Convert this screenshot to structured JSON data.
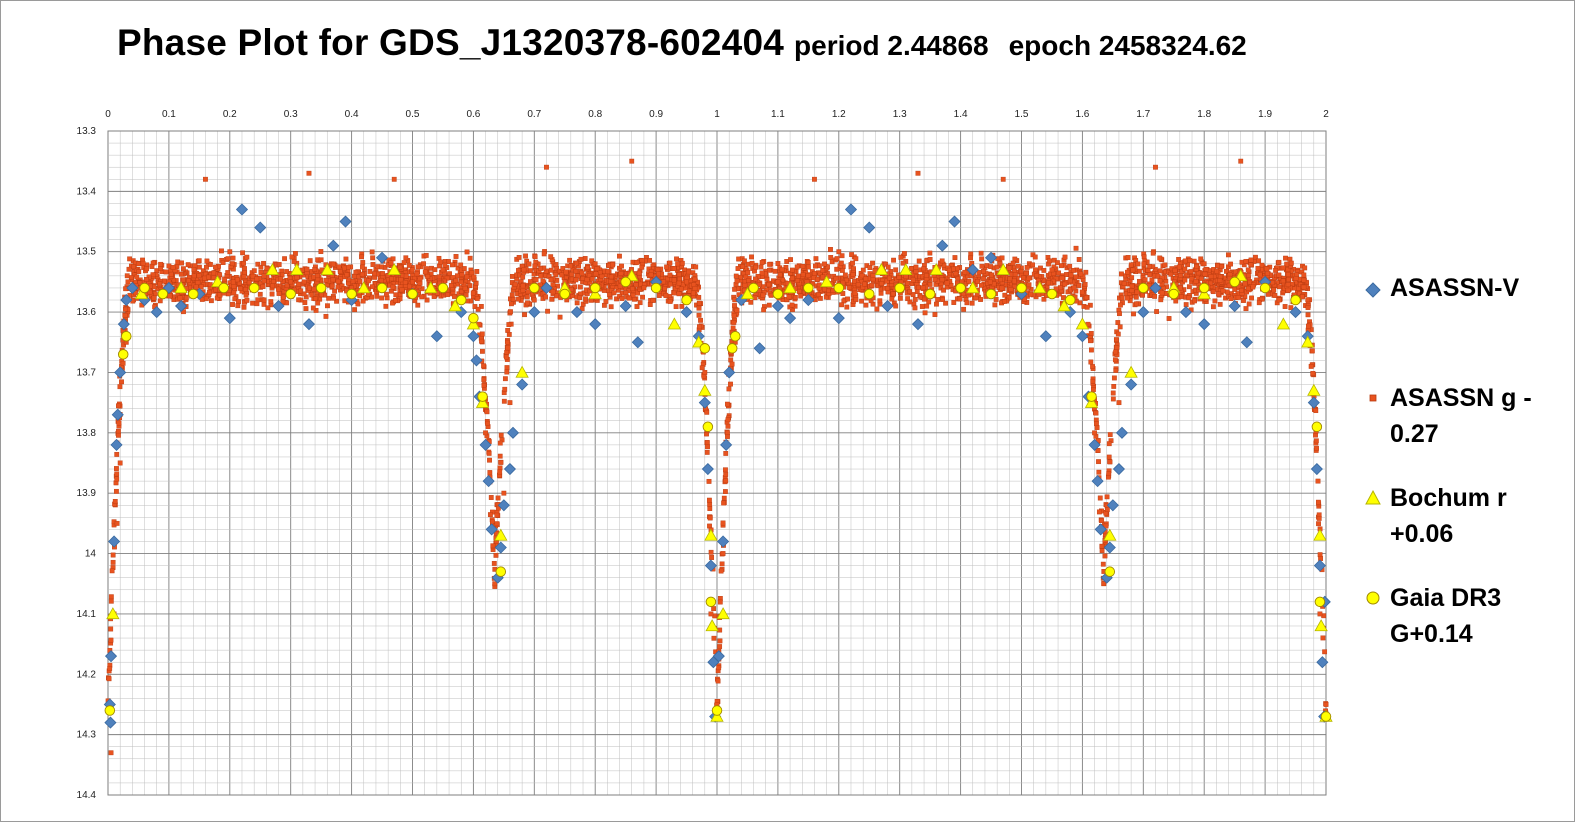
{
  "title": {
    "main": "Phase Plot for GDS_J1320378-602404",
    "period": "period 2.44868",
    "epoch": "epoch 2458324.62"
  },
  "colors": {
    "asassn_v": "#4f81bd",
    "asassn_v_edge": "#3a6aa0",
    "asassn_g": "#e8531f",
    "asassn_g_edge": "#b83a10",
    "bochum": "#ffff00",
    "bochum_edge": "#b5b500",
    "gaia": "#ffff00",
    "gaia_edge": "#a08800",
    "grid_major": "#7f7f7f",
    "grid_minor": "#bfbfbf"
  },
  "chart_data": {
    "type": "scatter",
    "title": "Phase Plot for GDS_J1320378-602404 period 2.44868  epoch 2458324.62",
    "xlabel": "",
    "ylabel": "",
    "xlim": [
      0,
      2
    ],
    "ylim": [
      14.4,
      13.3
    ],
    "y_reversed": true,
    "x_axis_position": "top",
    "grid": true,
    "legend_position": "right",
    "x_ticks": [
      "0",
      "0.1",
      "0.2",
      "0.3",
      "0.4",
      "0.5",
      "0.6",
      "0.7",
      "0.8",
      "0.9",
      "1",
      "1.1",
      "1.2",
      "1.3",
      "1.4",
      "1.5",
      "1.6",
      "1.7",
      "1.8",
      "1.9",
      "2"
    ],
    "y_ticks": [
      "13.3",
      "13.4",
      "13.5",
      "13.6",
      "13.7",
      "13.8",
      "13.9",
      "14",
      "14.1",
      "14.2",
      "14.3",
      "14.4"
    ],
    "light_curve_model": {
      "baseline_mag": 13.55,
      "primary_eclipse": {
        "phase": 0.0,
        "depth": 0.72,
        "half_width": 0.035
      },
      "secondary_eclipse": {
        "phase": 0.635,
        "depth": 0.48,
        "half_width": 0.035
      }
    },
    "series": [
      {
        "name": "ASASSN-V",
        "marker": "diamond",
        "points": [
          [
            0.005,
            14.17
          ],
          [
            0.003,
            14.25
          ],
          [
            0.004,
            14.28
          ],
          [
            0.01,
            13.98
          ],
          [
            0.014,
            13.82
          ],
          [
            0.016,
            13.77
          ],
          [
            0.02,
            13.7
          ],
          [
            0.026,
            13.62
          ],
          [
            0.03,
            13.58
          ],
          [
            0.04,
            13.56
          ],
          [
            0.06,
            13.58
          ],
          [
            0.08,
            13.6
          ],
          [
            0.1,
            13.56
          ],
          [
            0.12,
            13.59
          ],
          [
            0.15,
            13.57
          ],
          [
            0.2,
            13.61
          ],
          [
            0.22,
            13.43
          ],
          [
            0.25,
            13.46
          ],
          [
            0.28,
            13.59
          ],
          [
            0.33,
            13.62
          ],
          [
            0.37,
            13.49
          ],
          [
            0.39,
            13.45
          ],
          [
            0.4,
            13.58
          ],
          [
            0.45,
            13.51
          ],
          [
            0.5,
            13.57
          ],
          [
            0.54,
            13.64
          ],
          [
            0.58,
            13.6
          ],
          [
            0.6,
            13.64
          ],
          [
            0.605,
            13.68
          ],
          [
            0.61,
            13.74
          ],
          [
            0.62,
            13.82
          ],
          [
            0.625,
            13.88
          ],
          [
            0.63,
            13.96
          ],
          [
            0.64,
            14.04
          ],
          [
            0.645,
            13.99
          ],
          [
            0.65,
            13.92
          ],
          [
            0.66,
            13.86
          ],
          [
            0.665,
            13.8
          ],
          [
            0.68,
            13.72
          ],
          [
            0.7,
            13.6
          ],
          [
            0.72,
            13.56
          ],
          [
            0.77,
            13.6
          ],
          [
            0.8,
            13.62
          ],
          [
            0.85,
            13.59
          ],
          [
            0.87,
            13.65
          ],
          [
            0.9,
            13.55
          ],
          [
            0.95,
            13.6
          ],
          [
            0.97,
            13.64
          ],
          [
            0.98,
            13.75
          ],
          [
            0.985,
            13.86
          ],
          [
            0.99,
            14.02
          ],
          [
            0.994,
            14.18
          ],
          [
            0.997,
            14.27
          ],
          [
            1.003,
            14.17
          ],
          [
            1.01,
            13.98
          ],
          [
            1.015,
            13.82
          ],
          [
            1.02,
            13.7
          ],
          [
            1.04,
            13.58
          ],
          [
            1.07,
            13.66
          ],
          [
            1.1,
            13.59
          ],
          [
            1.12,
            13.61
          ],
          [
            1.15,
            13.58
          ],
          [
            1.2,
            13.61
          ],
          [
            1.22,
            13.43
          ],
          [
            1.25,
            13.46
          ],
          [
            1.28,
            13.59
          ],
          [
            1.33,
            13.62
          ],
          [
            1.37,
            13.49
          ],
          [
            1.39,
            13.45
          ],
          [
            1.42,
            13.53
          ],
          [
            1.45,
            13.51
          ],
          [
            1.5,
            13.57
          ],
          [
            1.54,
            13.64
          ],
          [
            1.58,
            13.6
          ],
          [
            1.6,
            13.64
          ],
          [
            1.61,
            13.74
          ],
          [
            1.62,
            13.82
          ],
          [
            1.625,
            13.88
          ],
          [
            1.63,
            13.96
          ],
          [
            1.64,
            14.04
          ],
          [
            1.645,
            13.99
          ],
          [
            1.65,
            13.92
          ],
          [
            1.66,
            13.86
          ],
          [
            1.665,
            13.8
          ],
          [
            1.68,
            13.72
          ],
          [
            1.7,
            13.6
          ],
          [
            1.72,
            13.56
          ],
          [
            1.77,
            13.6
          ],
          [
            1.8,
            13.62
          ],
          [
            1.85,
            13.59
          ],
          [
            1.87,
            13.65
          ],
          [
            1.9,
            13.55
          ],
          [
            1.95,
            13.6
          ],
          [
            1.97,
            13.64
          ],
          [
            1.98,
            13.75
          ],
          [
            1.985,
            13.86
          ],
          [
            1.99,
            14.02
          ],
          [
            1.994,
            14.18
          ],
          [
            1.997,
            14.27
          ],
          [
            1.998,
            14.08
          ]
        ]
      },
      {
        "name": "ASASSN g -0.27",
        "marker": "square",
        "density_note": "dense cloud following the light-curve model with scatter ~0.05 mag",
        "points": [
          [
            0.005,
            14.33
          ],
          [
            0.01,
            14.1
          ],
          [
            0.015,
            13.95
          ],
          [
            0.02,
            13.85
          ],
          [
            0.03,
            13.65
          ],
          [
            0.05,
            13.52
          ],
          [
            0.1,
            13.55
          ],
          [
            0.16,
            13.38
          ],
          [
            0.2,
            13.5
          ],
          [
            0.3,
            13.55
          ],
          [
            0.33,
            13.37
          ],
          [
            0.4,
            13.56
          ],
          [
            0.47,
            13.38
          ],
          [
            0.5,
            13.55
          ],
          [
            0.55,
            13.53
          ],
          [
            0.6,
            13.62
          ],
          [
            0.62,
            13.8
          ],
          [
            0.635,
            14.05
          ],
          [
            0.65,
            13.9
          ],
          [
            0.66,
            13.75
          ],
          [
            0.7,
            13.58
          ],
          [
            0.72,
            13.36
          ],
          [
            0.75,
            13.55
          ],
          [
            0.8,
            13.52
          ],
          [
            0.86,
            13.35
          ],
          [
            0.9,
            13.55
          ],
          [
            0.95,
            13.55
          ],
          [
            0.98,
            13.7
          ],
          [
            0.99,
            14.1
          ],
          [
            1.0,
            14.25
          ],
          [
            1.01,
            14.0
          ],
          [
            1.03,
            13.65
          ],
          [
            1.1,
            13.55
          ],
          [
            1.16,
            13.38
          ],
          [
            1.2,
            13.5
          ],
          [
            1.33,
            13.37
          ],
          [
            1.4,
            13.56
          ],
          [
            1.47,
            13.38
          ],
          [
            1.55,
            13.53
          ],
          [
            1.62,
            13.8
          ],
          [
            1.635,
            14.05
          ],
          [
            1.66,
            13.75
          ],
          [
            1.72,
            13.36
          ],
          [
            1.8,
            13.52
          ],
          [
            1.86,
            13.35
          ],
          [
            1.9,
            13.55
          ],
          [
            1.99,
            14.1
          ],
          [
            2.0,
            14.25
          ]
        ]
      },
      {
        "name": "Bochum r +0.06",
        "marker": "triangle",
        "points": [
          [
            0.008,
            14.1
          ],
          [
            0.055,
            13.57
          ],
          [
            0.12,
            13.56
          ],
          [
            0.18,
            13.55
          ],
          [
            0.27,
            13.53
          ],
          [
            0.31,
            13.53
          ],
          [
            0.36,
            13.53
          ],
          [
            0.42,
            13.56
          ],
          [
            0.47,
            13.53
          ],
          [
            0.53,
            13.56
          ],
          [
            0.57,
            13.59
          ],
          [
            0.6,
            13.62
          ],
          [
            0.615,
            13.75
          ],
          [
            0.645,
            13.97
          ],
          [
            0.68,
            13.7
          ],
          [
            0.75,
            13.56
          ],
          [
            0.8,
            13.57
          ],
          [
            0.86,
            13.54
          ],
          [
            0.93,
            13.62
          ],
          [
            0.97,
            13.65
          ],
          [
            0.98,
            13.73
          ],
          [
            0.99,
            13.97
          ],
          [
            0.992,
            14.12
          ],
          [
            1.0,
            14.27
          ],
          [
            1.01,
            14.1
          ],
          [
            1.05,
            13.57
          ],
          [
            1.12,
            13.56
          ],
          [
            1.18,
            13.55
          ],
          [
            1.27,
            13.53
          ],
          [
            1.31,
            13.53
          ],
          [
            1.36,
            13.53
          ],
          [
            1.42,
            13.56
          ],
          [
            1.47,
            13.53
          ],
          [
            1.53,
            13.56
          ],
          [
            1.57,
            13.59
          ],
          [
            1.6,
            13.62
          ],
          [
            1.615,
            13.75
          ],
          [
            1.645,
            13.97
          ],
          [
            1.68,
            13.7
          ],
          [
            1.75,
            13.56
          ],
          [
            1.8,
            13.57
          ],
          [
            1.86,
            13.54
          ],
          [
            1.93,
            13.62
          ],
          [
            1.97,
            13.65
          ],
          [
            1.98,
            13.73
          ],
          [
            1.99,
            13.97
          ],
          [
            1.992,
            14.12
          ],
          [
            2.0,
            14.27
          ]
        ]
      },
      {
        "name": "Gaia DR3 G+0.14",
        "marker": "circle",
        "points": [
          [
            0.003,
            14.26
          ],
          [
            0.025,
            13.67
          ],
          [
            0.03,
            13.64
          ],
          [
            0.06,
            13.56
          ],
          [
            0.09,
            13.57
          ],
          [
            0.14,
            13.57
          ],
          [
            0.19,
            13.56
          ],
          [
            0.24,
            13.56
          ],
          [
            0.3,
            13.57
          ],
          [
            0.35,
            13.56
          ],
          [
            0.4,
            13.57
          ],
          [
            0.45,
            13.56
          ],
          [
            0.5,
            13.57
          ],
          [
            0.55,
            13.56
          ],
          [
            0.58,
            13.58
          ],
          [
            0.6,
            13.61
          ],
          [
            0.615,
            13.74
          ],
          [
            0.645,
            14.03
          ],
          [
            0.7,
            13.56
          ],
          [
            0.75,
            13.57
          ],
          [
            0.8,
            13.56
          ],
          [
            0.85,
            13.55
          ],
          [
            0.9,
            13.56
          ],
          [
            0.95,
            13.58
          ],
          [
            0.98,
            13.66
          ],
          [
            0.985,
            13.79
          ],
          [
            0.99,
            14.08
          ],
          [
            1.0,
            14.26
          ],
          [
            1.025,
            13.66
          ],
          [
            1.03,
            13.64
          ],
          [
            1.06,
            13.56
          ],
          [
            1.1,
            13.57
          ],
          [
            1.15,
            13.56
          ],
          [
            1.2,
            13.56
          ],
          [
            1.25,
            13.57
          ],
          [
            1.3,
            13.56
          ],
          [
            1.35,
            13.57
          ],
          [
            1.4,
            13.56
          ],
          [
            1.45,
            13.57
          ],
          [
            1.5,
            13.56
          ],
          [
            1.55,
            13.57
          ],
          [
            1.58,
            13.58
          ],
          [
            1.615,
            13.74
          ],
          [
            1.645,
            14.03
          ],
          [
            1.7,
            13.56
          ],
          [
            1.75,
            13.57
          ],
          [
            1.8,
            13.56
          ],
          [
            1.85,
            13.55
          ],
          [
            1.9,
            13.56
          ],
          [
            1.95,
            13.58
          ],
          [
            1.985,
            13.79
          ],
          [
            1.99,
            14.08
          ],
          [
            2.0,
            14.27
          ]
        ]
      }
    ]
  },
  "legend": [
    {
      "marker": "diamond",
      "label": "ASASSN-V"
    },
    {
      "marker": "square",
      "label": "ASASSN g -\n0.27"
    },
    {
      "marker": "triangle",
      "label": "Bochum r\n+0.06"
    },
    {
      "marker": "circle",
      "label": "Gaia DR3\nG+0.14"
    }
  ]
}
